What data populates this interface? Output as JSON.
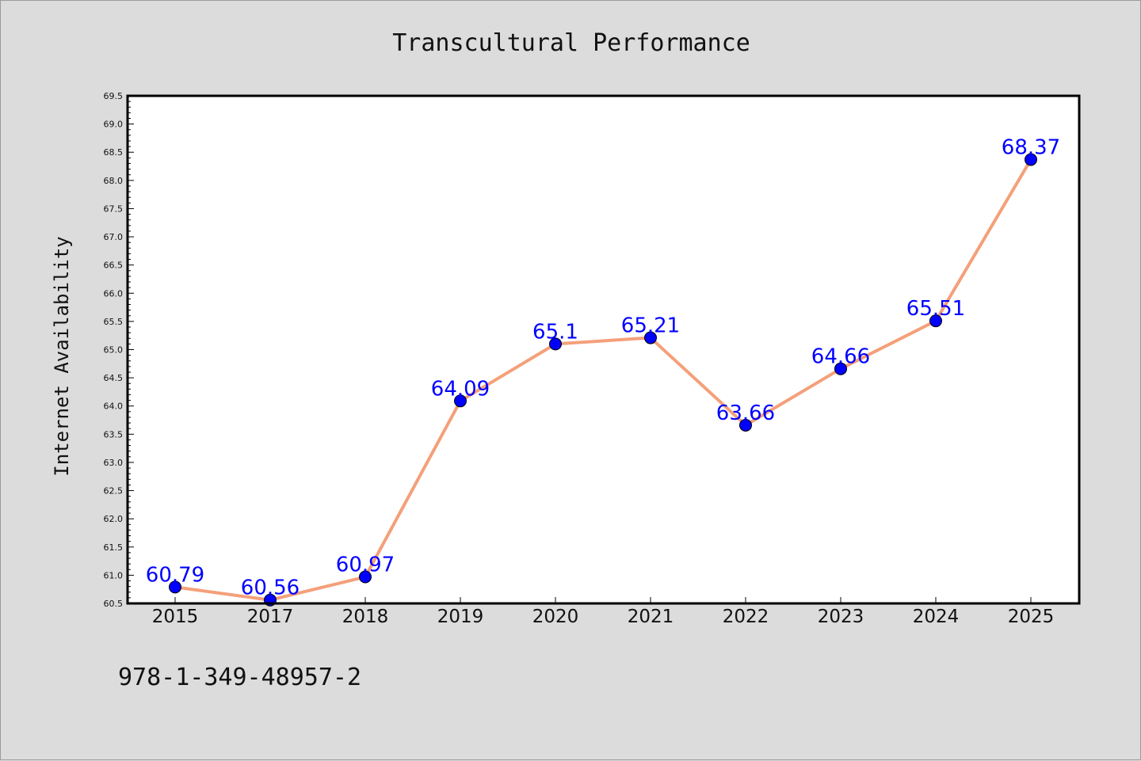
{
  "chart_data": {
    "type": "line",
    "title": "Transcultural Performance",
    "xlabel": "",
    "ylabel": "Internet Availability",
    "categories": [
      "2015",
      "2017",
      "2018",
      "2019",
      "2020",
      "2021",
      "2022",
      "2023",
      "2024",
      "2025"
    ],
    "series": [
      {
        "values": [
          60.79,
          60.56,
          60.97,
          64.09,
          65.1,
          65.21,
          63.66,
          64.66,
          65.51,
          68.37
        ],
        "data_labels": [
          "60.79",
          "60.56",
          "60.97",
          "64.09",
          "65.1",
          "65.21",
          "63.66",
          "64.66",
          "65.51",
          "68.37"
        ],
        "line_color": "#f4a07a",
        "marker_color": "#0000ff"
      }
    ],
    "ylim": [
      60.5,
      69.5
    ],
    "yticks": [
      "60.5",
      "61.0",
      "61.5",
      "62.0",
      "62.5",
      "63.0",
      "63.5",
      "64.0",
      "64.5",
      "65.0",
      "65.5",
      "66.0",
      "66.5",
      "67.0",
      "67.5",
      "68.0",
      "68.5",
      "69.0",
      "69.5"
    ],
    "grid": false,
    "legend": "none",
    "background_color": "#dcdcdc",
    "plot_background_color": "#ffffff"
  },
  "footer_note": "978-1-349-48957-2"
}
